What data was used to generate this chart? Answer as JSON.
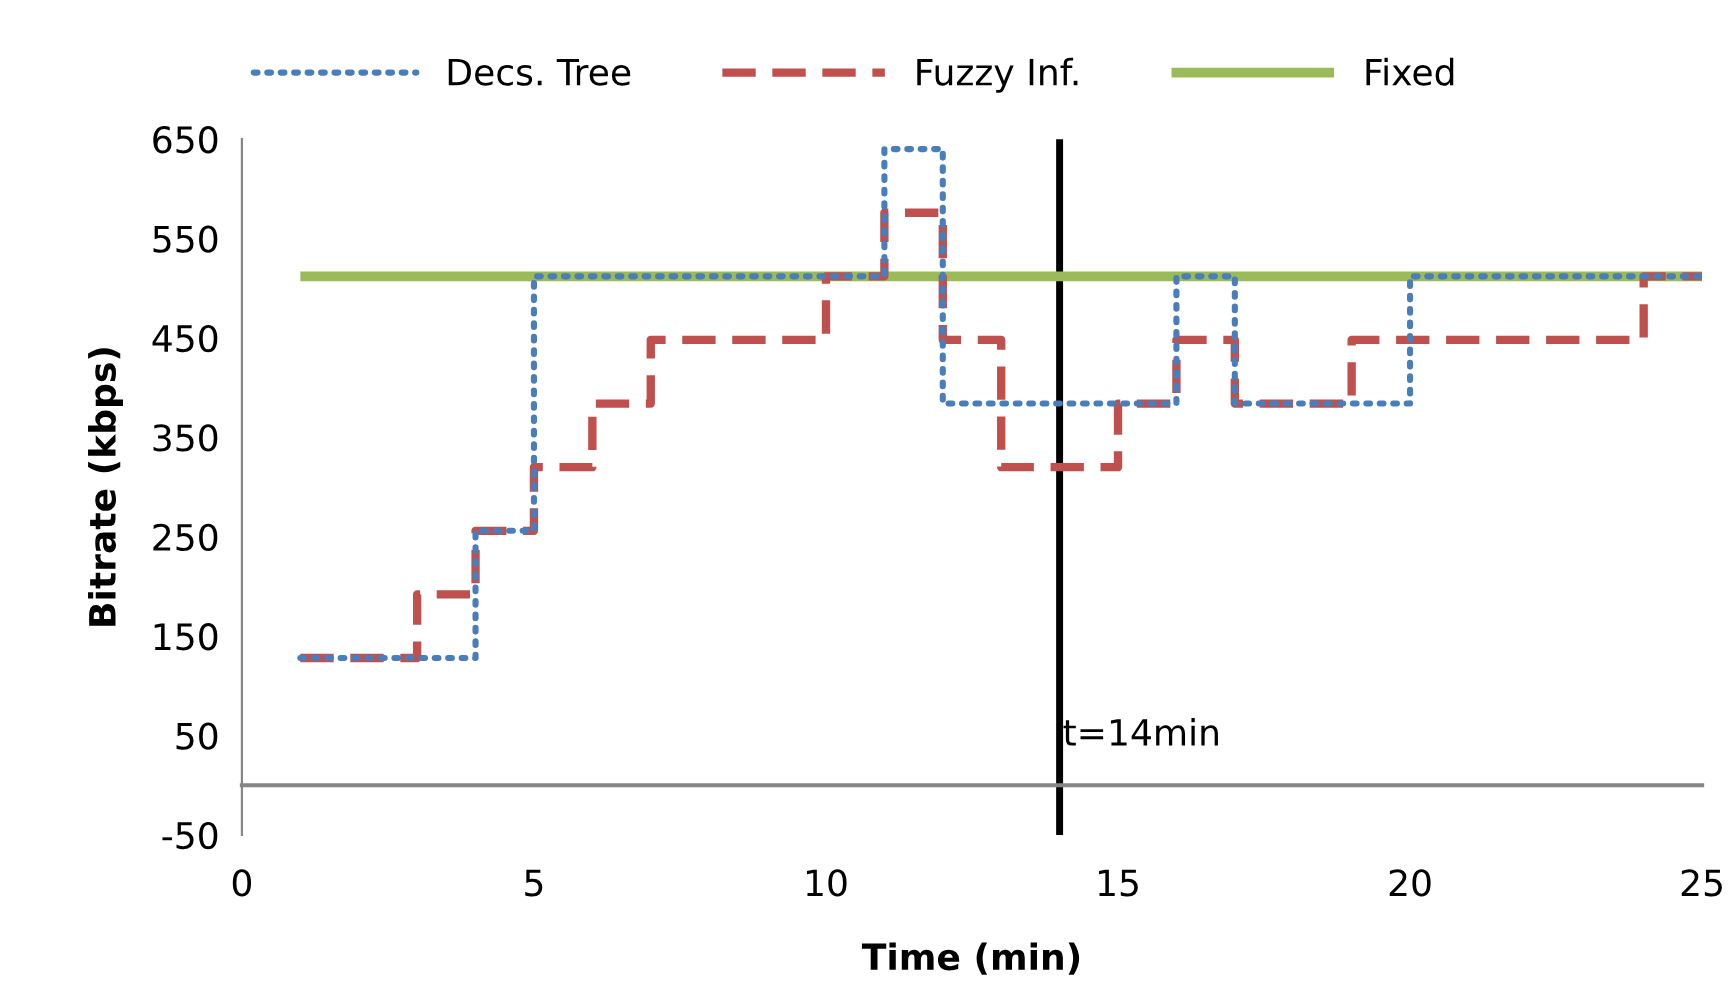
{
  "chart_data": {
    "type": "step",
    "xlabel": "Time (min)",
    "ylabel": "Bitrate (kbps)",
    "x": [
      1,
      2,
      3,
      4,
      5,
      6,
      7,
      8,
      9,
      10,
      11,
      12,
      13,
      14,
      15,
      16,
      17,
      18,
      19,
      20,
      21,
      22,
      23,
      24,
      25
    ],
    "series": [
      {
        "name": "Decs. Tree",
        "color": "#4a7ebb",
        "line_style": "dotted",
        "values": [
          128,
          128,
          128,
          256,
          512,
          512,
          512,
          512,
          512,
          512,
          640,
          384,
          384,
          384,
          384,
          512,
          384,
          384,
          384,
          512,
          512,
          512,
          512,
          512,
          512
        ]
      },
      {
        "name": "Fuzzy Inf.",
        "color": "#c0504d",
        "line_style": "dashed",
        "values": [
          128,
          128,
          192,
          256,
          320,
          384,
          448,
          448,
          448,
          512,
          576,
          448,
          320,
          320,
          384,
          448,
          384,
          384,
          448,
          448,
          448,
          448,
          448,
          512,
          512
        ]
      },
      {
        "name": "Fixed",
        "color": "#9bbb59",
        "line_style": "solid",
        "values": [
          512,
          512,
          512,
          512,
          512,
          512,
          512,
          512,
          512,
          512,
          512,
          512,
          512,
          512,
          512,
          512,
          512,
          512,
          512,
          512,
          512,
          512,
          512,
          512,
          512
        ]
      }
    ],
    "xlim": [
      0,
      25
    ],
    "xticks": [
      0,
      5,
      10,
      15,
      20,
      25
    ],
    "ylim": [
      -50,
      650
    ],
    "yticks": [
      -50,
      50,
      150,
      250,
      350,
      450,
      550,
      650
    ],
    "ref_lines": [
      {
        "axis": "x",
        "value": 14,
        "label": "t=14min",
        "color": "#000000"
      }
    ],
    "grid": false,
    "legend": "top"
  }
}
